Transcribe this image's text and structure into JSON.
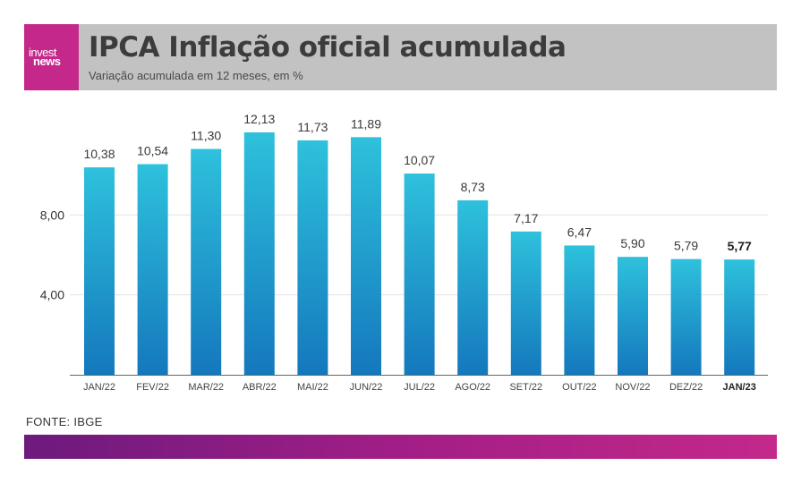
{
  "header": {
    "logo_line1": "invest",
    "logo_line2": "news",
    "title": "IPCA Inflação oficial acumulada",
    "subtitle": "Variação acumulada em 12 meses, em %"
  },
  "footer": {
    "source": "FONTE: IBGE"
  },
  "colors": {
    "header_bg": "#c2c2c2",
    "brand": "#c4288a",
    "bar_top": "#2ec1dc",
    "bar_bottom": "#1478bd",
    "footer_gradient_start": "#6d1a7e",
    "footer_gradient_end": "#c4288a"
  },
  "chart_data": {
    "type": "bar",
    "categories": [
      "JAN/22",
      "FEV/22",
      "MAR/22",
      "ABR/22",
      "MAI/22",
      "JUN/22",
      "JUL/22",
      "AGO/22",
      "SET/22",
      "OUT/22",
      "NOV/22",
      "DEZ/22",
      "JAN/23"
    ],
    "values": [
      10.38,
      10.54,
      11.3,
      12.13,
      11.73,
      11.89,
      10.07,
      8.73,
      7.17,
      6.47,
      5.9,
      5.79,
      5.77
    ],
    "value_labels": [
      "10,38",
      "10,54",
      "11,30",
      "12,13",
      "11,73",
      "11,89",
      "10,07",
      "8,73",
      "7,17",
      "6,47",
      "5,90",
      "5,79",
      "5,77"
    ],
    "highlight_category": "JAN/23",
    "yticks": [
      4,
      8
    ],
    "ytick_labels": [
      "4,00",
      "8,00"
    ],
    "ylim": [
      0,
      12.13
    ],
    "grid": true,
    "legend": "none"
  }
}
